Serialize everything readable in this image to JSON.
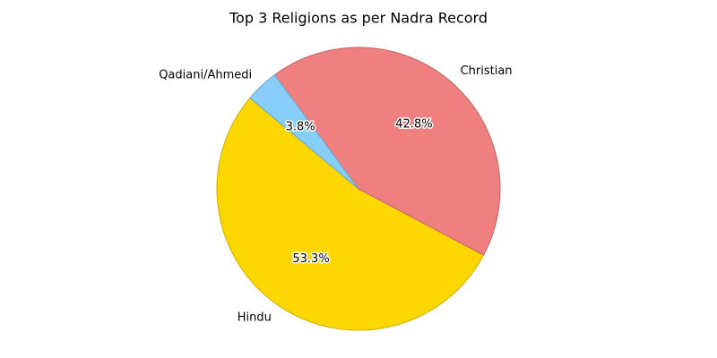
{
  "chart_data": {
    "type": "pie",
    "title": "Top 3 Religions as per Nadra Record",
    "categories": [
      "Hindu",
      "Christian",
      "Qadiani/Ahmedi"
    ],
    "values": [
      53.3,
      42.8,
      3.8
    ],
    "value_labels": [
      "53.3%",
      "42.8%",
      "3.8%"
    ],
    "colors": [
      "#ffd700",
      "#f08080",
      "#87cefa"
    ],
    "start_angle": 140
  }
}
